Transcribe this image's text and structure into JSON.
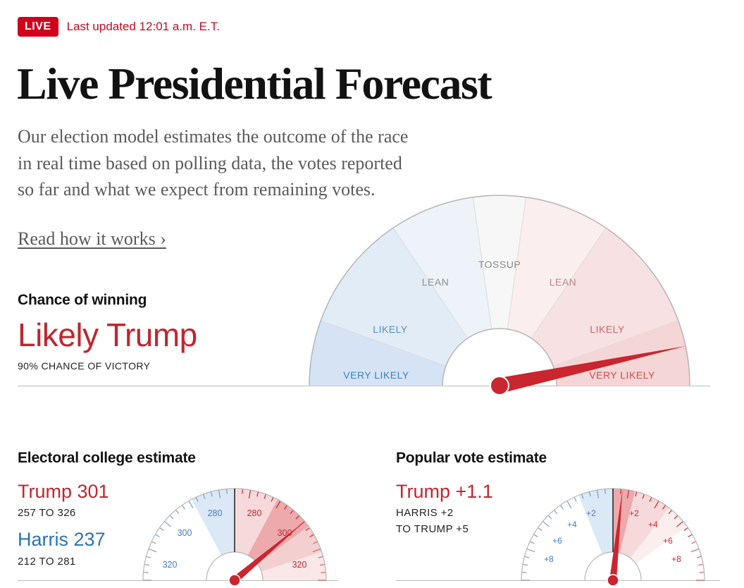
{
  "header": {
    "live_badge": "LIVE",
    "last_updated": "Last updated 12:01 a.m. E.T."
  },
  "title": "Live Presidential Forecast",
  "intro": "Our election model estimates the outcome of the race in real time based on polling data, the votes reported so far and what we expect from remaining votes.",
  "read_link": "Read how it works ›",
  "chance": {
    "label": "Chance of winning",
    "result": "Likely Trump",
    "sub": "90% CHANCE OF VICTORY",
    "win_probability": 0.9,
    "segments": {
      "dem_very_likely": "VERY LIKELY",
      "dem_likely": "LIKELY",
      "dem_lean": "LEAN",
      "tossup": "TOSSUP",
      "rep_lean": "LEAN",
      "rep_likely": "LIKELY",
      "rep_very_likely": "VERY LIKELY"
    }
  },
  "electoral": {
    "label": "Electoral college estimate",
    "trump": "Trump 301",
    "trump_range": "257 TO 326",
    "harris": "Harris 237",
    "harris_range": "212 TO 281",
    "ticks_dem": [
      "280",
      "300",
      "320"
    ],
    "ticks_rep": [
      "280",
      "300",
      "320"
    ]
  },
  "popular": {
    "label": "Popular vote estimate",
    "trump": "Trump +1.1",
    "range_line1": "HARRIS +2",
    "range_line2": "TO TRUMP +5",
    "ticks_dem": [
      "+2",
      "+4",
      "+6",
      "+8"
    ],
    "ticks_rep": [
      "+2",
      "+4",
      "+6",
      "+8"
    ]
  },
  "colors": {
    "red": "#c0262f",
    "blue": "#2a74b5",
    "live": "#d0021b"
  }
}
